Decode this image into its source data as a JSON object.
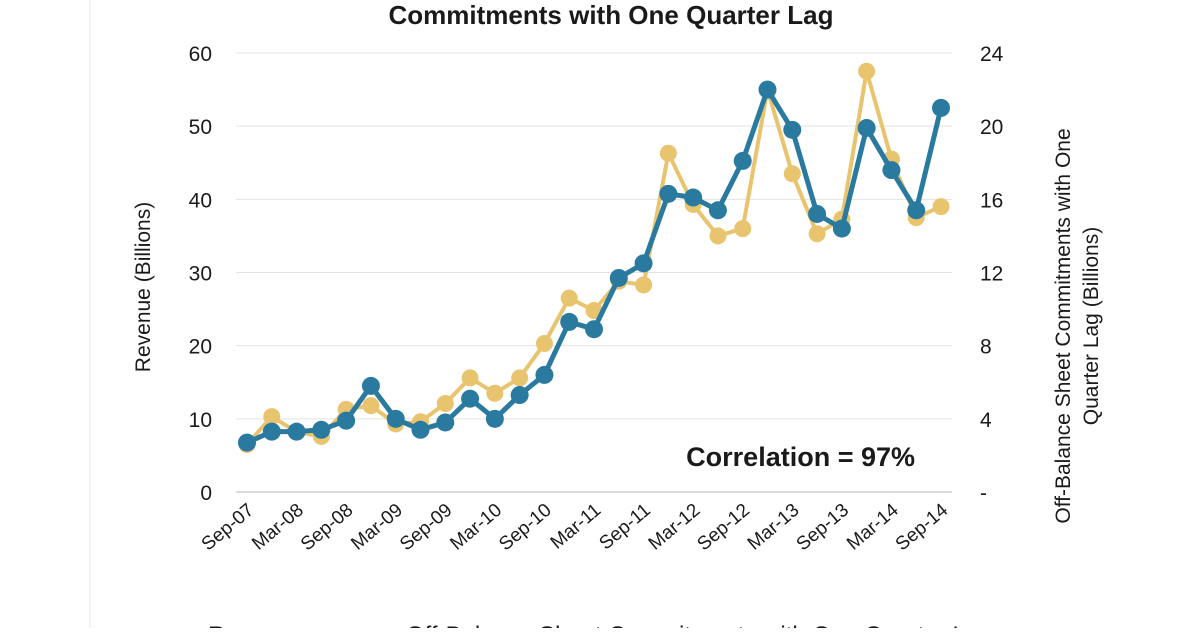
{
  "chart_data": {
    "type": "line",
    "title": "Commitments with One Quarter Lag",
    "ylabel": "Revenue (Billions)",
    "y2label_lines": [
      "Off-Balance Sheet Commitments with One",
      "Quarter Lag (Billions)"
    ],
    "annotation": "Correlation = 97%",
    "ylim": [
      0,
      60
    ],
    "y2lim": [
      0,
      24
    ],
    "yticks": [
      "0",
      "10",
      "20",
      "30",
      "40",
      "50",
      "60"
    ],
    "y2ticks": [
      "-",
      "4",
      "8",
      "12",
      "16",
      "20",
      "24"
    ],
    "xtick_labels": [
      "Sep-07",
      "Mar-08",
      "Sep-08",
      "Mar-09",
      "Sep-09",
      "Mar-10",
      "Sep-10",
      "Mar-11",
      "Sep-11",
      "Mar-12",
      "Sep-12",
      "Mar-13",
      "Sep-13",
      "Mar-14",
      "Sep-14"
    ],
    "x": [
      "Sep-07",
      "Dec-07",
      "Mar-08",
      "Jun-08",
      "Sep-08",
      "Dec-08",
      "Mar-09",
      "Jun-09",
      "Sep-09",
      "Dec-09",
      "Mar-10",
      "Jun-10",
      "Sep-10",
      "Dec-10",
      "Mar-11",
      "Jun-11",
      "Sep-11",
      "Dec-11",
      "Mar-12",
      "Jun-12",
      "Sep-12",
      "Dec-12",
      "Mar-13",
      "Jun-13",
      "Sep-13",
      "Dec-13",
      "Mar-14",
      "Jun-14",
      "Sep-14"
    ],
    "grid": true,
    "legend_position": "bottom",
    "series": [
      {
        "name": "Revenue",
        "axis": "left",
        "color": "#e8c46f",
        "values": [
          6.5,
          10.3,
          8.2,
          7.6,
          11.3,
          11.8,
          9.3,
          9.6,
          12.1,
          15.6,
          13.5,
          15.6,
          20.3,
          26.5,
          24.8,
          28.8,
          28.3,
          46.3,
          39.3,
          35.0,
          36.0,
          55.0,
          43.5,
          35.3,
          37.3,
          57.5,
          45.5,
          37.5,
          39.0
        ]
      },
      {
        "name": "Off-Balance Sheet Commitments with One Quarter Lag",
        "axis": "right",
        "color": "#2a7aa0",
        "values": [
          2.7,
          3.3,
          3.3,
          3.4,
          3.9,
          5.8,
          4.0,
          3.4,
          3.8,
          5.1,
          4.0,
          5.3,
          6.4,
          9.3,
          8.9,
          11.7,
          12.5,
          16.3,
          16.1,
          15.4,
          18.1,
          22.0,
          19.8,
          15.2,
          14.4,
          19.9,
          17.6,
          15.4,
          21.0
        ]
      }
    ]
  }
}
